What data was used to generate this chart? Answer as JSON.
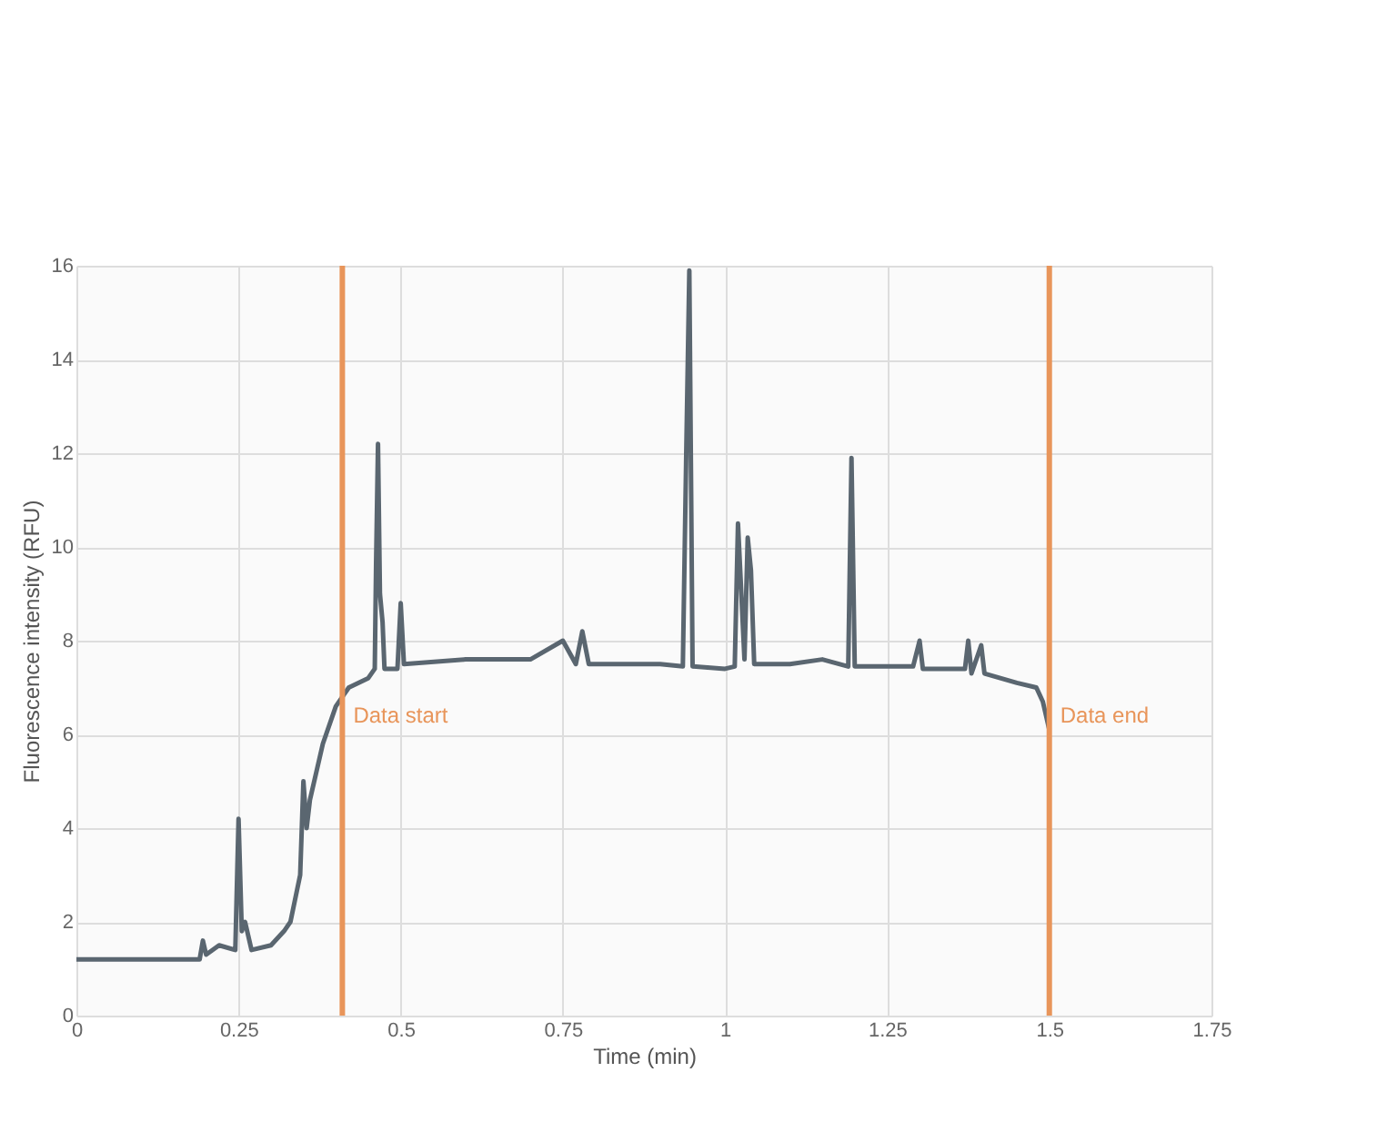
{
  "chart_data": {
    "type": "line",
    "xlabel": "Time (min)",
    "ylabel": "Fluorescence intensity (RFU)",
    "x": [
      0,
      0.19,
      0.195,
      0.2,
      0.22,
      0.245,
      0.25,
      0.255,
      0.26,
      0.27,
      0.3,
      0.32,
      0.33,
      0.345,
      0.35,
      0.355,
      0.36,
      0.38,
      0.4,
      0.42,
      0.45,
      0.46,
      0.462,
      0.465,
      0.468,
      0.472,
      0.475,
      0.495,
      0.5,
      0.505,
      0.6,
      0.7,
      0.75,
      0.77,
      0.78,
      0.79,
      0.9,
      0.935,
      0.94,
      0.945,
      0.95,
      1.0,
      1.015,
      1.02,
      1.03,
      1.035,
      1.04,
      1.045,
      1.1,
      1.15,
      1.19,
      1.195,
      1.2,
      1.29,
      1.3,
      1.305,
      1.37,
      1.375,
      1.38,
      1.395,
      1.4,
      1.45,
      1.48,
      1.49,
      1.5
    ],
    "series": [
      {
        "color": "#5a6670",
        "values": [
          1.2,
          1.2,
          1.6,
          1.3,
          1.5,
          1.4,
          4.2,
          1.8,
          2.0,
          1.4,
          1.5,
          1.8,
          2.0,
          3.0,
          5.0,
          4.0,
          4.6,
          5.8,
          6.6,
          7.0,
          7.2,
          7.4,
          9.6,
          12.2,
          9.0,
          8.4,
          7.4,
          7.4,
          8.8,
          7.5,
          7.6,
          7.6,
          8.0,
          7.5,
          8.2,
          7.5,
          7.5,
          7.45,
          11.8,
          15.9,
          7.45,
          7.4,
          7.45,
          10.5,
          7.6,
          10.2,
          9.5,
          7.5,
          7.5,
          7.6,
          7.45,
          11.9,
          7.45,
          7.45,
          8.0,
          7.4,
          7.4,
          8.0,
          7.3,
          7.9,
          7.3,
          7.1,
          7.0,
          6.7,
          6.1
        ]
      }
    ],
    "xlim": [
      0,
      1.75
    ],
    "xticks": [
      0,
      0.25,
      0.5,
      0.75,
      1,
      1.25,
      1.5,
      1.75
    ],
    "ylim": [
      0,
      16
    ],
    "yticks": [
      0,
      2,
      4,
      6,
      8,
      10,
      12,
      14,
      16
    ],
    "ref_lines": [
      {
        "axis": "x",
        "value": 0.41,
        "label": "Data start",
        "color": "#e8955a"
      },
      {
        "axis": "x",
        "value": 1.5,
        "label": "Data end",
        "color": "#e8955a"
      }
    ],
    "grid": true,
    "marker": "none",
    "line_style": "solid"
  }
}
